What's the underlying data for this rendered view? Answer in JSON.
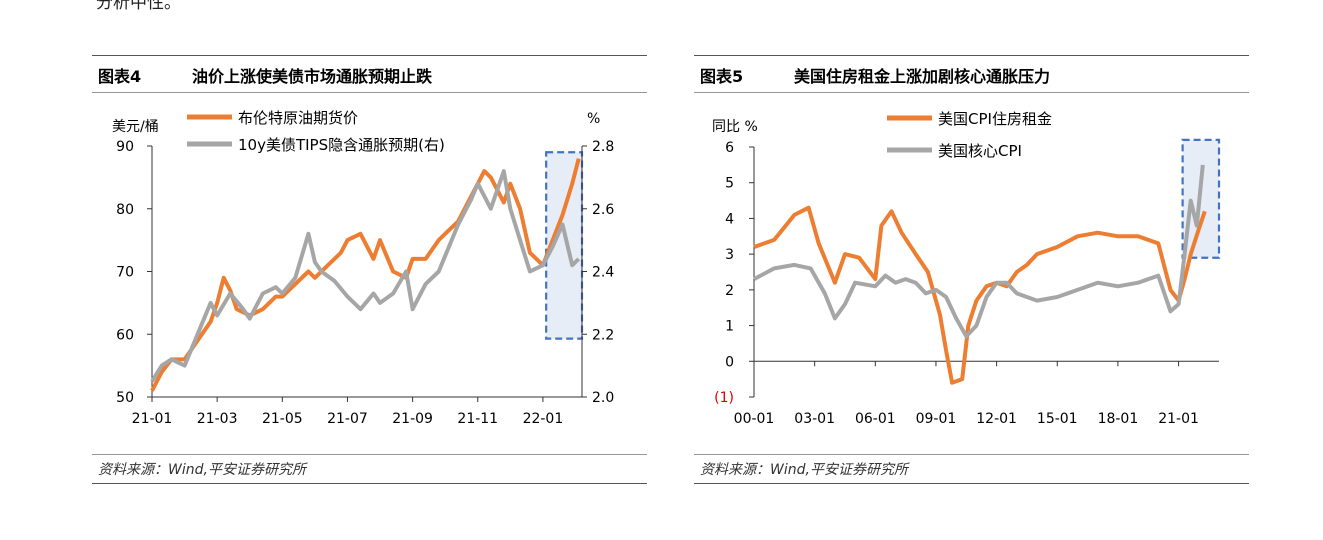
{
  "top_text": "分析中性。",
  "panels": [
    {
      "fig_num": "图表4",
      "title": "油价上涨使美债市场通胀预期止跌",
      "source": "资料来源：Wind,平安证券研究所"
    },
    {
      "fig_num": "图表5",
      "title": "美国住房租金上涨加剧核心通胀压力",
      "source": "资料来源：Wind,平安证券研究所"
    }
  ],
  "chart_data": [
    {
      "type": "line",
      "title": "油价上涨使美债市场通胀预期止跌",
      "ylabel_left": "美元/桶",
      "ylabel_right": "%",
      "ylim_left": [
        50,
        90
      ],
      "ylim_right": [
        2.0,
        2.8
      ],
      "yticks_left": [
        "50",
        "60",
        "70",
        "80",
        "90"
      ],
      "yticks_right": [
        "2.0",
        "2.2",
        "2.4",
        "2.6",
        "2.8"
      ],
      "xticks": [
        "21-01",
        "21-03",
        "21-05",
        "21-07",
        "21-09",
        "21-11",
        "22-01"
      ],
      "xrange": [
        0,
        13.2
      ],
      "legend_position": "top-left",
      "series": [
        {
          "name": "布伦特原油期货价",
          "color": "#ED7D31",
          "axis": "left",
          "x": [
            0,
            0.3,
            0.6,
            1,
            1.4,
            1.8,
            2,
            2.2,
            2.4,
            2.6,
            3,
            3.4,
            3.8,
            4,
            4.4,
            4.8,
            5,
            5.4,
            5.8,
            6,
            6.4,
            6.8,
            7,
            7.4,
            7.8,
            8,
            8.4,
            8.8,
            9,
            9.4,
            9.8,
            10,
            10.2,
            10.4,
            10.8,
            11,
            11.3,
            11.6,
            12,
            12.3,
            12.6,
            12.9,
            13.1
          ],
          "values": [
            51,
            54,
            56,
            56,
            59,
            62,
            65,
            69,
            67,
            64,
            63,
            64,
            66,
            66,
            68,
            70,
            69,
            71,
            73,
            75,
            76,
            72,
            75,
            70,
            69,
            72,
            72,
            75,
            76,
            78,
            82,
            84,
            86,
            85,
            81,
            84,
            80,
            73,
            71,
            75,
            79,
            84,
            88
          ]
        },
        {
          "name": "10y美债TIPS隐含通胀预期(右)",
          "color": "#A6A6A6",
          "axis": "right",
          "x": [
            0,
            0.3,
            0.6,
            1,
            1.4,
            1.8,
            2,
            2.4,
            2.8,
            3,
            3.4,
            3.8,
            4,
            4.4,
            4.8,
            5,
            5.2,
            5.6,
            6,
            6.4,
            6.8,
            7,
            7.4,
            7.8,
            8,
            8.4,
            8.8,
            9,
            9.4,
            9.8,
            10,
            10.4,
            10.8,
            11,
            11.3,
            11.6,
            12,
            12.3,
            12.6,
            12.9,
            13.1
          ],
          "values": [
            2.05,
            2.1,
            2.12,
            2.1,
            2.2,
            2.3,
            2.26,
            2.33,
            2.28,
            2.25,
            2.33,
            2.35,
            2.33,
            2.38,
            2.52,
            2.43,
            2.4,
            2.37,
            2.32,
            2.28,
            2.33,
            2.3,
            2.33,
            2.4,
            2.28,
            2.36,
            2.4,
            2.45,
            2.55,
            2.63,
            2.68,
            2.6,
            2.72,
            2.6,
            2.5,
            2.4,
            2.42,
            2.48,
            2.55,
            2.42,
            2.44
          ]
        }
      ],
      "highlight_range": [
        12.1,
        13.2
      ]
    },
    {
      "type": "line",
      "title": "美国住房租金上涨加剧核心通胀压力",
      "ylabel": "同比 %",
      "ylim": [
        -1,
        6
      ],
      "yticks": [
        "(1)",
        "0",
        "1",
        "2",
        "3",
        "4",
        "5",
        "6"
      ],
      "xticks": [
        "00-01",
        "03-01",
        "06-01",
        "09-01",
        "12-01",
        "15-01",
        "18-01",
        "21-01"
      ],
      "xrange": [
        0,
        23
      ],
      "legend_position": "top-center",
      "series": [
        {
          "name": "美国CPI住房租金",
          "color": "#ED7D31",
          "x": [
            0,
            1,
            2,
            2.7,
            3.2,
            4,
            4.5,
            5.2,
            6,
            6.3,
            6.8,
            7.3,
            8,
            8.6,
            9.2,
            9.5,
            9.8,
            10.3,
            10.6,
            11,
            11.5,
            12,
            12.5,
            13,
            13.5,
            14,
            15,
            16,
            17,
            18,
            19,
            20,
            20.6,
            21,
            21.3,
            21.6,
            22,
            22.3
          ],
          "values": [
            3.2,
            3.4,
            4.1,
            4.3,
            3.3,
            2.2,
            3.0,
            2.9,
            2.3,
            3.8,
            4.2,
            3.6,
            3.0,
            2.5,
            1.3,
            0.3,
            -0.6,
            -0.5,
            1.0,
            1.7,
            2.1,
            2.2,
            2.1,
            2.5,
            2.7,
            3.0,
            3.2,
            3.5,
            3.6,
            3.5,
            3.5,
            3.3,
            2.0,
            1.7,
            2.3,
            3.0,
            3.7,
            4.2
          ]
        },
        {
          "name": "美国核心CPI",
          "color": "#A6A6A6",
          "x": [
            0,
            1,
            2,
            2.8,
            3.5,
            4,
            4.5,
            5,
            6,
            6.5,
            7,
            7.5,
            8,
            8.5,
            9,
            9.5,
            10,
            10.5,
            11,
            11.5,
            12,
            12.5,
            13,
            14,
            15,
            16,
            17,
            18,
            19,
            20,
            20.6,
            21,
            21.3,
            21.6,
            21.9,
            22.2
          ],
          "values": [
            2.3,
            2.6,
            2.7,
            2.6,
            1.9,
            1.2,
            1.6,
            2.2,
            2.1,
            2.4,
            2.2,
            2.3,
            2.2,
            1.9,
            2.0,
            1.8,
            1.2,
            0.7,
            1.0,
            1.8,
            2.2,
            2.2,
            1.9,
            1.7,
            1.8,
            2.0,
            2.2,
            2.1,
            2.2,
            2.4,
            1.4,
            1.6,
            3.0,
            4.5,
            3.8,
            5.5
          ]
        }
      ],
      "highlight_range": [
        21.2,
        23
      ],
      "highlight_ylim": [
        2.9,
        6.2
      ]
    }
  ]
}
